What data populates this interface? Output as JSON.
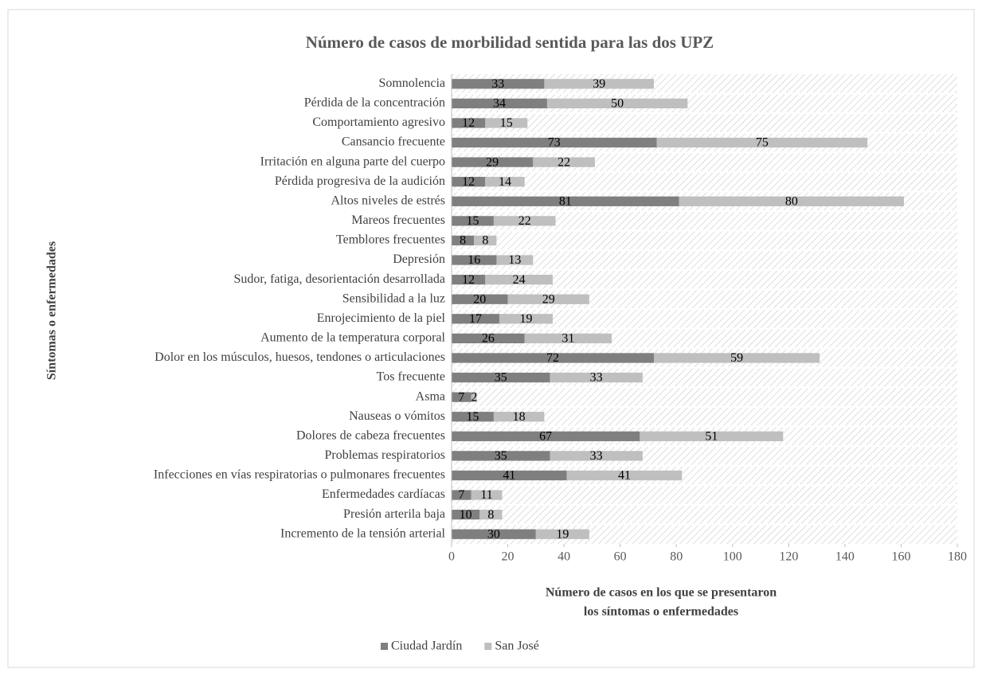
{
  "chart_data": {
    "type": "stacked-barh",
    "title": "Número de casos de morbilidad sentida para las dos UPZ",
    "ylabel": "Síntomas o enfermedades",
    "xlabel": [
      "Número de casos en los que se presentaron",
      "los síntomas o enfermedades"
    ],
    "categories": [
      "Somnolencia",
      "Pérdida de la concentración",
      "Comportamiento agresivo",
      "Cansancio frecuente",
      "Irritación en alguna parte del cuerpo",
      "Pérdida progresiva de la audición",
      "Altos niveles de estrés",
      "Mareos frecuentes",
      "Temblores frecuentes",
      "Depresión",
      "Sudor, fatiga, desorientación desarrollada",
      "Sensibilidad a la luz",
      "Enrojecimiento de la piel",
      "Aumento de la temperatura corporal",
      "Dolor en los músculos, huesos, tendones o articulaciones",
      "Tos frecuente",
      "Asma",
      "Nauseas o vómitos",
      "Dolores de cabeza frecuentes",
      "Problemas respiratorios",
      "Infecciones en vías respiratorias o pulmonares frecuentes",
      "Enfermedades cardíacas",
      "Presión arterila baja",
      "Incremento de la tensión arterial"
    ],
    "series": [
      {
        "name": "Ciudad Jardín",
        "color": "#7f7f7f",
        "values": [
          33,
          34,
          12,
          73,
          29,
          12,
          81,
          15,
          8,
          16,
          12,
          20,
          17,
          26,
          72,
          35,
          7,
          15,
          67,
          35,
          41,
          7,
          10,
          30
        ]
      },
      {
        "name": "San José",
        "color": "#bfbfbf",
        "values": [
          39,
          50,
          15,
          75,
          22,
          14,
          80,
          22,
          8,
          13,
          24,
          29,
          19,
          31,
          59,
          33,
          2,
          18,
          51,
          33,
          41,
          11,
          8,
          19
        ]
      }
    ],
    "xlim": [
      0,
      180
    ],
    "xticks": [
      0,
      20,
      40,
      60,
      80,
      100,
      120,
      140,
      160,
      180
    ],
    "legend": "bottom"
  }
}
